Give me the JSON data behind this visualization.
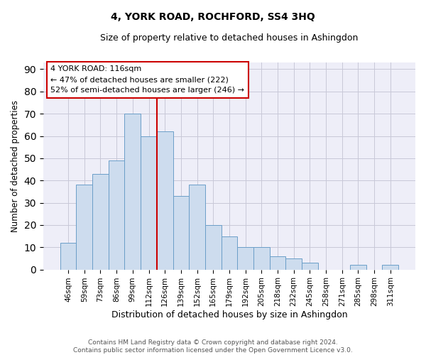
{
  "title": "4, YORK ROAD, ROCHFORD, SS4 3HQ",
  "subtitle": "Size of property relative to detached houses in Ashingdon",
  "xlabel": "Distribution of detached houses by size in Ashingdon",
  "ylabel": "Number of detached properties",
  "categories": [
    "46sqm",
    "59sqm",
    "73sqm",
    "86sqm",
    "99sqm",
    "112sqm",
    "126sqm",
    "139sqm",
    "152sqm",
    "165sqm",
    "179sqm",
    "192sqm",
    "205sqm",
    "218sqm",
    "232sqm",
    "245sqm",
    "258sqm",
    "271sqm",
    "285sqm",
    "298sqm",
    "311sqm"
  ],
  "values": [
    12,
    38,
    43,
    49,
    70,
    60,
    62,
    33,
    38,
    20,
    15,
    10,
    10,
    6,
    5,
    3,
    0,
    0,
    2,
    0,
    2
  ],
  "bar_color": "#cddcee",
  "bar_edge_color": "#6b9ec8",
  "annotation_text_line1": "4 YORK ROAD: 116sqm",
  "annotation_text_line2": "← 47% of detached houses are smaller (222)",
  "annotation_text_line3": "52% of semi-detached houses are larger (246) →",
  "annotation_box_facecolor": "#ffffff",
  "annotation_border_color": "#cc0000",
  "vline_color": "#cc0000",
  "grid_color": "#c8c8d8",
  "background_color": "#eeeef8",
  "footer_text": "Contains HM Land Registry data © Crown copyright and database right 2024.\nContains public sector information licensed under the Open Government Licence v3.0.",
  "yticks": [
    0,
    10,
    20,
    30,
    40,
    50,
    60,
    70,
    80,
    90
  ],
  "ylim": [
    0,
    93
  ]
}
